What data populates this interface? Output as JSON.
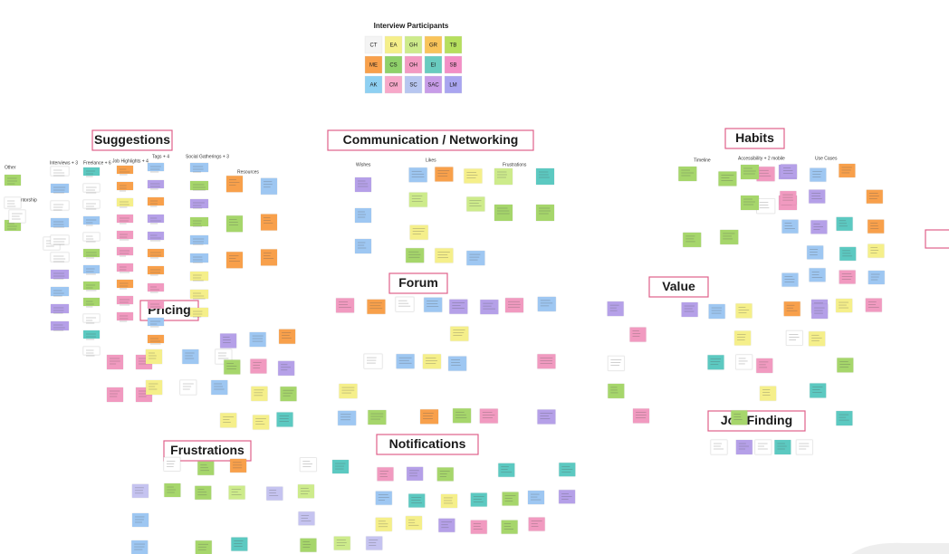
{
  "legend": {
    "title": "Interview Participants",
    "participants": [
      {
        "code": "CT",
        "color": "#f4f4f4"
      },
      {
        "code": "EA",
        "color": "#f5ef8a"
      },
      {
        "code": "GH",
        "color": "#cdeb8b"
      },
      {
        "code": "GR",
        "color": "#f9c45a"
      },
      {
        "code": "TB",
        "color": "#b6df5e"
      },
      {
        "code": "ME",
        "color": "#f8a04b"
      },
      {
        "code": "CS",
        "color": "#8fd16a"
      },
      {
        "code": "OH",
        "color": "#f39ac2"
      },
      {
        "code": "EI",
        "color": "#69cbbf"
      },
      {
        "code": "SB",
        "color": "#f38fc6"
      },
      {
        "code": "AK",
        "color": "#8ed0f2"
      },
      {
        "code": "CM",
        "color": "#f7a8c9"
      },
      {
        "code": "SC",
        "color": "#b7c6f0"
      },
      {
        "code": "SAC",
        "color": "#c79ce8"
      },
      {
        "code": "LM",
        "color": "#a9a5f0"
      }
    ]
  },
  "clusters": [
    {
      "title": "Suggestions",
      "subheadings": [
        "Other",
        "Mentorship",
        "Interviews + 3",
        "Freelance + 6",
        "Job Highlights + 4",
        "Tags + 4",
        "Social Gatherings + 3",
        "Resources"
      ]
    },
    {
      "title": "Communication / Networking",
      "subheadings": [
        "Wishes",
        "Likes",
        "Frustrations"
      ]
    },
    {
      "title": "Habits",
      "subheadings": [
        "Timeline",
        "Accessibility + 2 mobile",
        "Use Cases"
      ]
    },
    {
      "title": "Pricing",
      "subheadings": []
    },
    {
      "title": "Forum",
      "subheadings": []
    },
    {
      "title": "Value",
      "subheadings": []
    },
    {
      "title": "Frustrations",
      "subheadings": []
    },
    {
      "title": "Notifications",
      "subheadings": []
    },
    {
      "title": "Job Finding",
      "subheadings": []
    }
  ]
}
